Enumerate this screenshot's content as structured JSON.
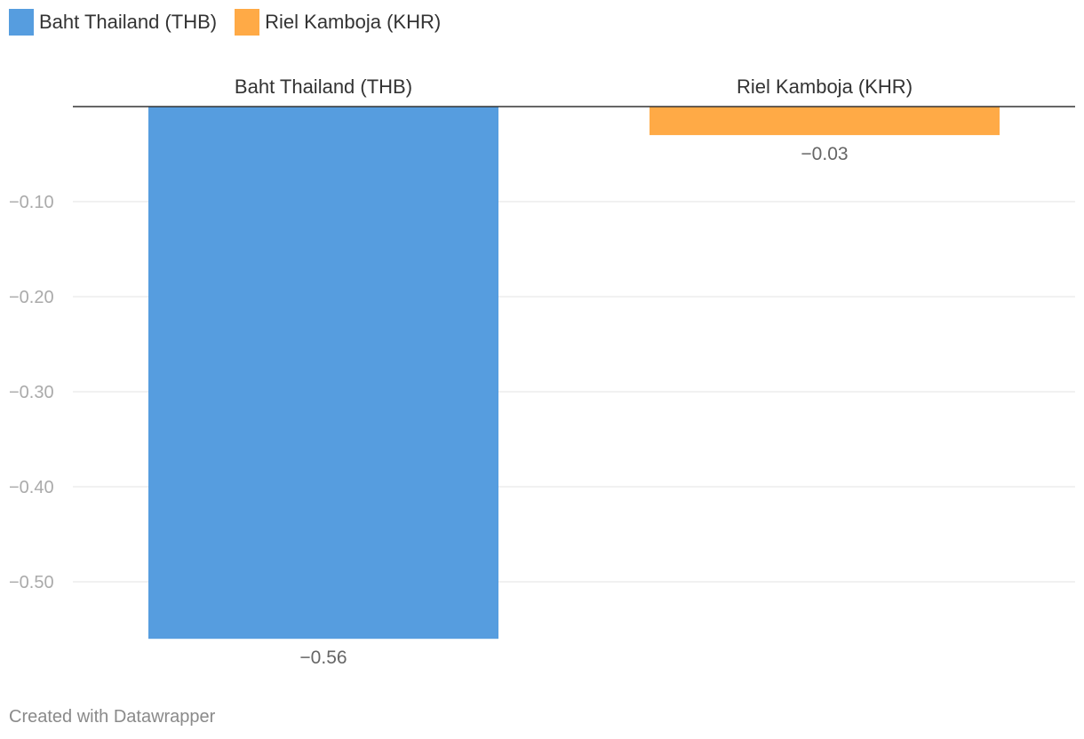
{
  "legend": {
    "items": [
      {
        "label": "Baht Thailand (THB)",
        "color": "#569DDF"
      },
      {
        "label": "Riel Kamboja (KHR)",
        "color": "#FFAA46"
      }
    ]
  },
  "footer": {
    "credit": "Created with Datawrapper"
  },
  "chart_data": {
    "type": "bar",
    "categories": [
      "Baht Thailand (THB)",
      "Riel Kamboja (KHR)"
    ],
    "values": [
      -0.56,
      -0.03
    ],
    "value_labels": [
      "−0.56",
      "−0.03"
    ],
    "colors": [
      "#569DDF",
      "#FFAA46"
    ],
    "yticks": [
      -0.1,
      -0.2,
      -0.3,
      -0.4,
      -0.5
    ],
    "ytick_labels": [
      "−0.10",
      "−0.20",
      "−0.30",
      "−0.40",
      "−0.50"
    ],
    "ylim": [
      -0.6,
      0
    ],
    "grid": true,
    "legend_position": "top-left",
    "category_labels_position": "top"
  }
}
